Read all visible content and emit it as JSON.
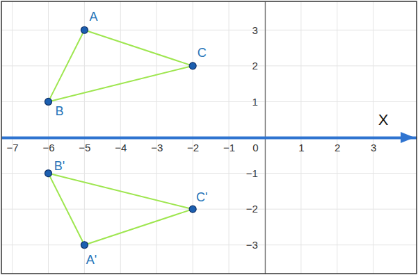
{
  "chart_data": {
    "type": "scatter",
    "x_label": "X",
    "xlim": [
      -7.3,
      4.2
    ],
    "ylim": [
      -3.8,
      3.8
    ],
    "xticks": [
      -7,
      -6,
      -5,
      -4,
      -3,
      -2,
      -1,
      0,
      1,
      2,
      3
    ],
    "yticks": [
      -3,
      -2,
      -1,
      1,
      2,
      3
    ],
    "grid": true,
    "series": [
      {
        "type": "polygon",
        "labels": [
          "A",
          "B",
          "C"
        ],
        "x": [
          -5,
          -6,
          -2
        ],
        "values": [
          3,
          1,
          2
        ],
        "color": "#9ee64f",
        "marker": "circle",
        "line_style": "solid"
      },
      {
        "type": "polygon",
        "labels": [
          "A'",
          "B'",
          "C'"
        ],
        "x": [
          -5,
          -6,
          -2
        ],
        "values": [
          -3,
          -1,
          -2
        ],
        "color": "#9ee64f",
        "marker": "circle",
        "line_style": "solid"
      }
    ]
  }
}
